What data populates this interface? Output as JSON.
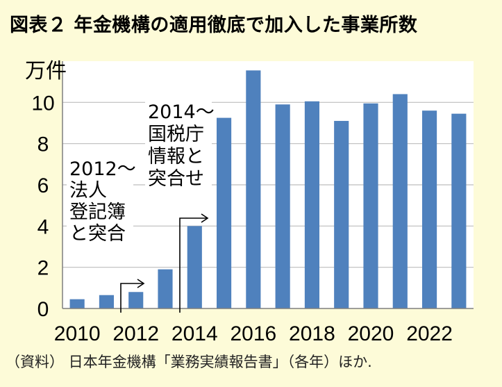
{
  "title": "図表２ 年金機構の適用徹底で加入した事業所数",
  "source": "（資料） 日本年金機構「業務実績報告書」（各年）ほか.",
  "colors": {
    "background": "#fdfbd8",
    "bar": "#4f81bd",
    "plot_background": "#ffffff",
    "grid": "#bdbdbd"
  },
  "chart_data": {
    "type": "bar",
    "title": "図表２ 年金機構の適用徹底で加入した事業所数",
    "ylabel": "万件",
    "xlabel": "",
    "ylim": [
      0,
      12
    ],
    "yticks": [
      0,
      2,
      4,
      6,
      8,
      10
    ],
    "xticks": [
      "2010",
      "2012",
      "2014",
      "2016",
      "2018",
      "2020",
      "2022"
    ],
    "grid": true,
    "categories": [
      "2010",
      "2011",
      "2012",
      "2013",
      "2014",
      "2015",
      "2016",
      "2017",
      "2018",
      "2019",
      "2020",
      "2021",
      "2022",
      "2023"
    ],
    "values": [
      0.45,
      0.65,
      0.8,
      1.9,
      4.0,
      9.25,
      11.55,
      9.9,
      10.05,
      9.1,
      9.95,
      10.4,
      9.6,
      9.45
    ],
    "annotations": [
      {
        "lines": [
          "2012～",
          "法人",
          "登記簿",
          "と突合"
        ],
        "year": "2012"
      },
      {
        "lines": [
          "2014～",
          "国税庁",
          "情報と",
          "突合せ"
        ],
        "year": "2014"
      }
    ]
  }
}
